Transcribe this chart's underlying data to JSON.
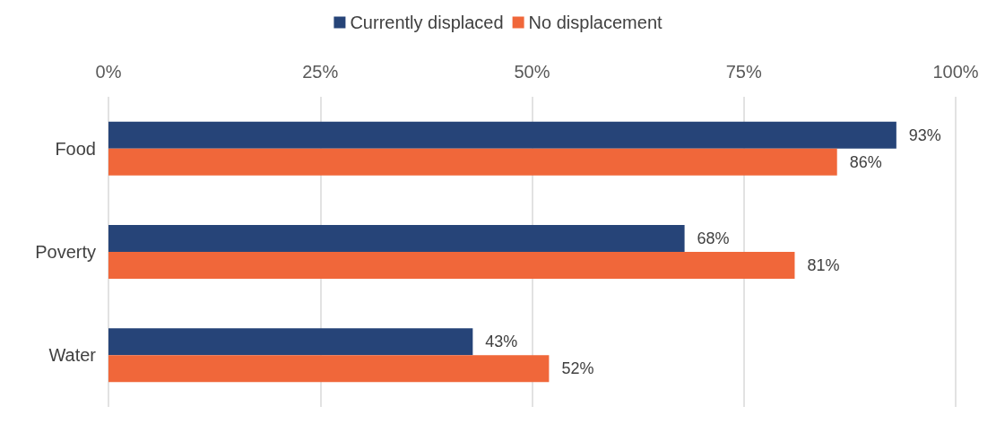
{
  "chart_data": {
    "type": "bar",
    "orientation": "horizontal",
    "categories": [
      "Food",
      "Poverty",
      "Water"
    ],
    "series": [
      {
        "name": "Currently displaced",
        "color": "#264478",
        "values": [
          93,
          68,
          43
        ],
        "value_labels": [
          "93%",
          "68%",
          "43%"
        ]
      },
      {
        "name": "No displacement",
        "color": "#f0673a",
        "values": [
          86,
          81,
          52
        ],
        "value_labels": [
          "86%",
          "81%",
          "52%"
        ]
      }
    ],
    "xlim": [
      0,
      100
    ],
    "xticks": [
      {
        "value": 0,
        "label": "0%"
      },
      {
        "value": 25,
        "label": "25%"
      },
      {
        "value": 50,
        "label": "50%"
      },
      {
        "value": 75,
        "label": "75%"
      },
      {
        "value": 100,
        "label": "100%"
      }
    ],
    "grid": "x",
    "legend": "top"
  }
}
